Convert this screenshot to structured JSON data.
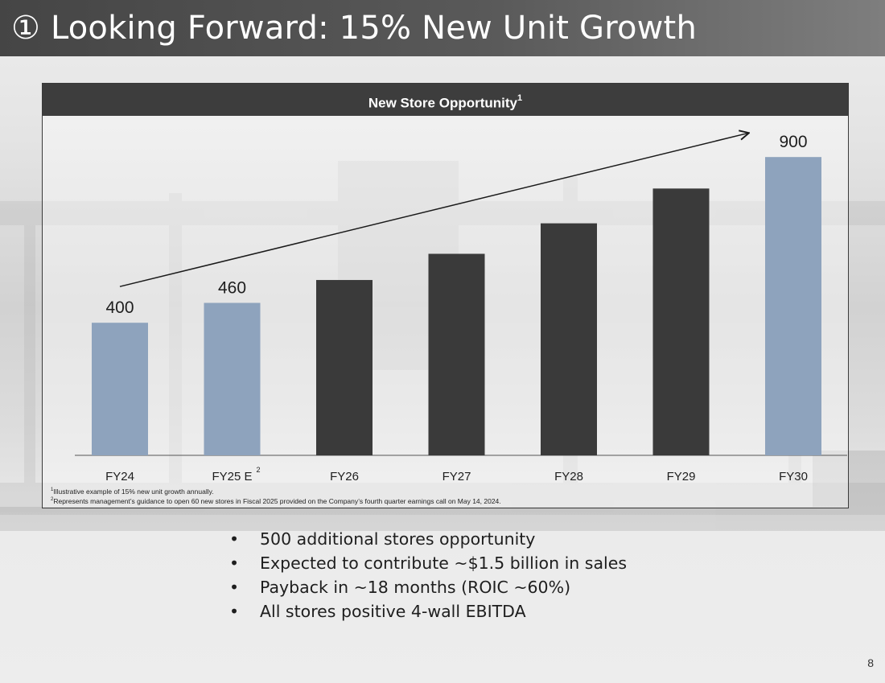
{
  "slide": {
    "title": "① Looking Forward: 15% New Unit Growth",
    "page_number": "8"
  },
  "chart_data": {
    "type": "bar",
    "title": "New Store Opportunity",
    "title_superscript": "1",
    "categories": [
      "FY24",
      "FY25 E",
      "FY26",
      "FY27",
      "FY28",
      "FY29",
      "FY30"
    ],
    "category_superscripts": [
      "",
      "2",
      "",
      "",
      "",
      "",
      ""
    ],
    "values": [
      400,
      460,
      529,
      608,
      700,
      805,
      900
    ],
    "data_labels": [
      "400",
      "460",
      "",
      "",
      "",
      "",
      "900"
    ],
    "bar_colors": [
      "#8ea3bd",
      "#8ea3bd",
      "#3a3a3a",
      "#3a3a3a",
      "#3a3a3a",
      "#3a3a3a",
      "#8ea3bd"
    ],
    "ylim": [
      0,
      1000
    ],
    "xlabel": "",
    "ylabel": "",
    "grid": false,
    "annotations": [
      {
        "type": "arrow",
        "from_category": "FY24",
        "to_category": "FY30",
        "description": "growth trend arrow"
      }
    ],
    "footnotes": [
      {
        "marker": "1",
        "text": "Illustrative example of 15% new unit growth annually."
      },
      {
        "marker": "2",
        "text": "Represents management’s guidance to open 60 new stores in Fiscal 2025 provided on the Company’s fourth quarter earnings call on May 14, 2024."
      }
    ]
  },
  "bullets": [
    "500 additional stores opportunity",
    "Expected to contribute ~$1.5 billion in sales",
    "Payback in ~18 months (ROIC ~60%)",
    "All stores positive 4-wall EBITDA"
  ],
  "bullet_symbol": "•",
  "colors": {
    "title_bar": "#4a4a4a",
    "highlight_bar": "#8ea3bd",
    "projection_bar": "#3a3a3a",
    "header": "#3d3d3d"
  }
}
